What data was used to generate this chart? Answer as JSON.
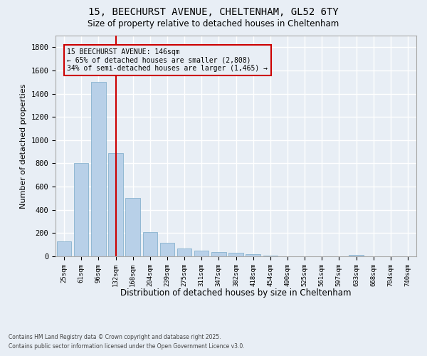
{
  "title_line1": "15, BEECHURST AVENUE, CHELTENHAM, GL52 6TY",
  "title_line2": "Size of property relative to detached houses in Cheltenham",
  "xlabel": "Distribution of detached houses by size in Cheltenham",
  "ylabel": "Number of detached properties",
  "categories": [
    "25sqm",
    "61sqm",
    "96sqm",
    "132sqm",
    "168sqm",
    "204sqm",
    "239sqm",
    "275sqm",
    "311sqm",
    "347sqm",
    "382sqm",
    "418sqm",
    "454sqm",
    "490sqm",
    "525sqm",
    "561sqm",
    "597sqm",
    "633sqm",
    "668sqm",
    "704sqm",
    "740sqm"
  ],
  "values": [
    130,
    805,
    1500,
    890,
    500,
    210,
    115,
    65,
    47,
    35,
    28,
    20,
    5,
    0,
    0,
    0,
    0,
    12,
    0,
    0,
    0
  ],
  "bar_color": "#b8d0e8",
  "bar_edge_color": "#7aaac8",
  "annotation_text_line1": "15 BEECHURST AVENUE: 146sqm",
  "annotation_text_line2": "← 65% of detached houses are smaller (2,808)",
  "annotation_text_line3": "34% of semi-detached houses are larger (1,465) →",
  "annotation_box_color": "#cc0000",
  "redline_x": 3.0,
  "ylim": [
    0,
    1900
  ],
  "yticks": [
    0,
    200,
    400,
    600,
    800,
    1000,
    1200,
    1400,
    1600,
    1800
  ],
  "background_color": "#e8eef5",
  "axes_bg_color": "#e8eef5",
  "grid_color": "#ffffff",
  "footer_line1": "Contains HM Land Registry data © Crown copyright and database right 2025.",
  "footer_line2": "Contains public sector information licensed under the Open Government Licence v3.0."
}
